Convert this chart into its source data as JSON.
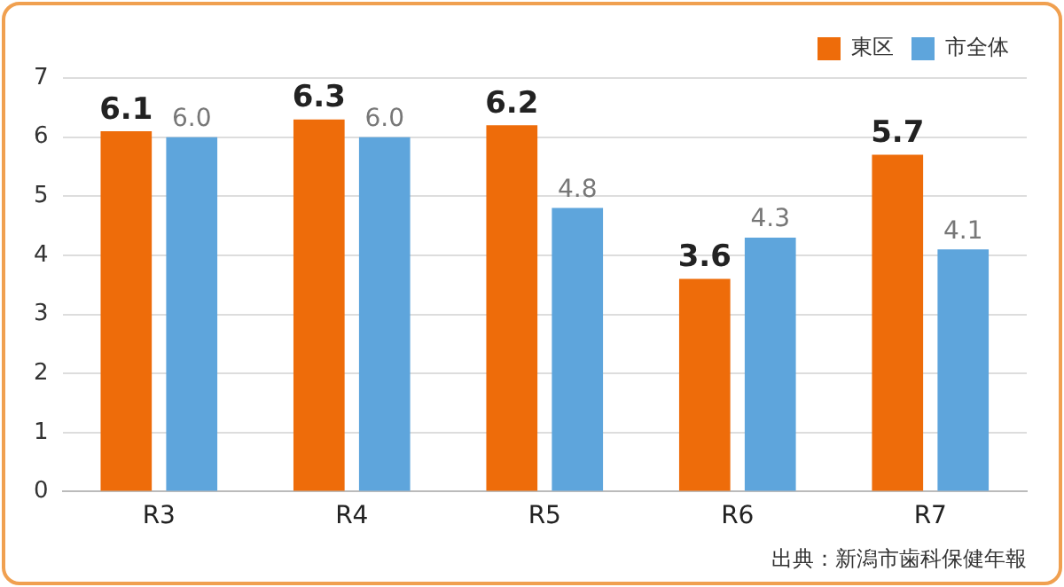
{
  "chart_data": {
    "type": "bar",
    "categories": [
      "R3",
      "R4",
      "R5",
      "R6",
      "R7"
    ],
    "series": [
      {
        "name": "東区",
        "color": "#ee6c0a",
        "values": [
          6.1,
          6.3,
          6.2,
          3.6,
          5.7
        ],
        "value_labels": [
          "6.1",
          "6.3",
          "6.2",
          "3.6",
          "5.7"
        ]
      },
      {
        "name": "市全体",
        "color": "#5ea5dc",
        "values": [
          6.0,
          6.0,
          4.8,
          4.3,
          4.1
        ],
        "value_labels": [
          "6.0",
          "6.0",
          "4.8",
          "4.3",
          "4.1"
        ]
      }
    ],
    "ylim": [
      0,
      7
    ],
    "yticks": [
      0,
      1,
      2,
      3,
      4,
      5,
      6,
      7
    ],
    "grid": "y",
    "legend": "top right",
    "annotations": [
      "出典：新潟市歯科保健年報"
    ]
  }
}
